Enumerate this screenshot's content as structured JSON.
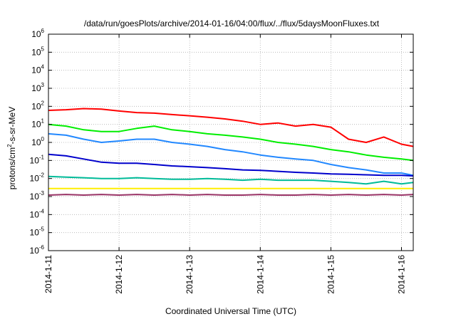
{
  "chart_data": {
    "type": "line",
    "title": "/data/run/goesPlots/archive/2014-01-16/04:00/flux/../flux/5daysMoonFluxes.txt",
    "xlabel": "Coordinated Universal Time (UTC)",
    "ylabel": "protons/cm²-s-sr-MeV",
    "ylabel_parts": {
      "pre": "protons/cm",
      "sup": "2",
      "post": "-s-sr-MeV"
    },
    "y_scale": "log",
    "ylim": [
      1e-06,
      1000000.0
    ],
    "y_ticks": [
      {
        "base": "10",
        "exp": "-6",
        "value": 1e-06
      },
      {
        "base": "10",
        "exp": "-5",
        "value": 1e-05
      },
      {
        "base": "10",
        "exp": "-4",
        "value": 0.0001
      },
      {
        "base": "10",
        "exp": "-3",
        "value": 0.001
      },
      {
        "base": "10",
        "exp": "-2",
        "value": 0.01
      },
      {
        "base": "10",
        "exp": "-1",
        "value": 0.1
      },
      {
        "base": "10",
        "exp": "0",
        "value": 1
      },
      {
        "base": "10",
        "exp": "1",
        "value": 10
      },
      {
        "base": "10",
        "exp": "2",
        "value": 100
      },
      {
        "base": "10",
        "exp": "3",
        "value": 1000
      },
      {
        "base": "10",
        "exp": "4",
        "value": 10000
      },
      {
        "base": "10",
        "exp": "5",
        "value": 100000
      },
      {
        "base": "10",
        "exp": "6",
        "value": 1000000
      }
    ],
    "x_ticks": [
      "2014-1-11",
      "2014-1-12",
      "2014-1-13",
      "2014-1-14",
      "2014-1-15",
      "2014-1-16"
    ],
    "xlim": [
      "2014-01-11T00:00",
      "2014-01-16T04:00"
    ],
    "grid": true,
    "series": [
      {
        "color": "#ff0000",
        "x": [
          "2014-01-11T00:00",
          "2014-01-11T06:00",
          "2014-01-11T12:00",
          "2014-01-11T18:00",
          "2014-01-12T00:00",
          "2014-01-12T06:00",
          "2014-01-12T12:00",
          "2014-01-12T18:00",
          "2014-01-13T00:00",
          "2014-01-13T06:00",
          "2014-01-13T12:00",
          "2014-01-13T18:00",
          "2014-01-14T00:00",
          "2014-01-14T06:00",
          "2014-01-14T12:00",
          "2014-01-14T18:00",
          "2014-01-15T00:00",
          "2014-01-15T06:00",
          "2014-01-15T12:00",
          "2014-01-15T18:00",
          "2014-01-16T00:00",
          "2014-01-16T04:00"
        ],
        "y": [
          60,
          65,
          75,
          70,
          55,
          45,
          42,
          35,
          30,
          25,
          20,
          15,
          10,
          12,
          8,
          10,
          7,
          1.5,
          1.0,
          2.0,
          0.8,
          0.6
        ]
      },
      {
        "color": "#00ee00",
        "x": [
          "2014-01-11T00:00",
          "2014-01-11T06:00",
          "2014-01-11T12:00",
          "2014-01-11T18:00",
          "2014-01-12T00:00",
          "2014-01-12T06:00",
          "2014-01-12T12:00",
          "2014-01-12T18:00",
          "2014-01-13T00:00",
          "2014-01-13T06:00",
          "2014-01-13T12:00",
          "2014-01-13T18:00",
          "2014-01-14T00:00",
          "2014-01-14T06:00",
          "2014-01-14T12:00",
          "2014-01-14T18:00",
          "2014-01-15T00:00",
          "2014-01-15T06:00",
          "2014-01-15T12:00",
          "2014-01-15T18:00",
          "2014-01-16T00:00",
          "2014-01-16T04:00"
        ],
        "y": [
          10,
          8,
          5,
          4,
          4,
          6,
          8,
          5,
          4,
          3,
          2.5,
          2,
          1.5,
          1.0,
          0.8,
          0.6,
          0.4,
          0.3,
          0.2,
          0.15,
          0.12,
          0.1
        ]
      },
      {
        "color": "#2288ff",
        "x": [
          "2014-01-11T00:00",
          "2014-01-11T06:00",
          "2014-01-11T12:00",
          "2014-01-11T18:00",
          "2014-01-12T00:00",
          "2014-01-12T06:00",
          "2014-01-12T12:00",
          "2014-01-12T18:00",
          "2014-01-13T00:00",
          "2014-01-13T06:00",
          "2014-01-13T12:00",
          "2014-01-13T18:00",
          "2014-01-14T00:00",
          "2014-01-14T06:00",
          "2014-01-14T12:00",
          "2014-01-14T18:00",
          "2014-01-15T00:00",
          "2014-01-15T06:00",
          "2014-01-15T12:00",
          "2014-01-15T18:00",
          "2014-01-16T00:00",
          "2014-01-16T04:00"
        ],
        "y": [
          3,
          2.5,
          1.5,
          1.0,
          1.2,
          1.5,
          1.5,
          1.0,
          0.8,
          0.6,
          0.4,
          0.3,
          0.2,
          0.15,
          0.12,
          0.1,
          0.06,
          0.04,
          0.03,
          0.02,
          0.02,
          0.015
        ]
      },
      {
        "color": "#0000cc",
        "x": [
          "2014-01-11T00:00",
          "2014-01-11T06:00",
          "2014-01-11T12:00",
          "2014-01-11T18:00",
          "2014-01-12T00:00",
          "2014-01-12T06:00",
          "2014-01-12T12:00",
          "2014-01-12T18:00",
          "2014-01-13T00:00",
          "2014-01-13T06:00",
          "2014-01-13T12:00",
          "2014-01-13T18:00",
          "2014-01-14T00:00",
          "2014-01-14T06:00",
          "2014-01-14T12:00",
          "2014-01-14T18:00",
          "2014-01-15T00:00",
          "2014-01-15T06:00",
          "2014-01-15T12:00",
          "2014-01-15T18:00",
          "2014-01-16T00:00",
          "2014-01-16T04:00"
        ],
        "y": [
          0.22,
          0.18,
          0.12,
          0.08,
          0.07,
          0.07,
          0.06,
          0.05,
          0.045,
          0.04,
          0.035,
          0.03,
          0.028,
          0.025,
          0.022,
          0.02,
          0.018,
          0.017,
          0.016,
          0.015,
          0.015,
          0.014
        ]
      },
      {
        "color": "#00bb99",
        "x": [
          "2014-01-11T00:00",
          "2014-01-11T06:00",
          "2014-01-11T12:00",
          "2014-01-11T18:00",
          "2014-01-12T00:00",
          "2014-01-12T06:00",
          "2014-01-12T12:00",
          "2014-01-12T18:00",
          "2014-01-13T00:00",
          "2014-01-13T06:00",
          "2014-01-13T12:00",
          "2014-01-13T18:00",
          "2014-01-14T00:00",
          "2014-01-14T06:00",
          "2014-01-14T12:00",
          "2014-01-14T18:00",
          "2014-01-15T00:00",
          "2014-01-15T06:00",
          "2014-01-15T12:00",
          "2014-01-15T18:00",
          "2014-01-16T00:00",
          "2014-01-16T04:00"
        ],
        "y": [
          0.013,
          0.012,
          0.011,
          0.01,
          0.01,
          0.011,
          0.01,
          0.009,
          0.009,
          0.01,
          0.009,
          0.008,
          0.009,
          0.008,
          0.008,
          0.008,
          0.007,
          0.006,
          0.005,
          0.007,
          0.005,
          0.006
        ]
      },
      {
        "color": "#ffee00",
        "x": [
          "2014-01-11T00:00",
          "2014-01-12T00:00",
          "2014-01-13T00:00",
          "2014-01-14T00:00",
          "2014-01-15T00:00",
          "2014-01-16T00:00",
          "2014-01-16T04:00"
        ],
        "y": [
          0.0028,
          0.0028,
          0.0028,
          0.0028,
          0.0028,
          0.0028,
          0.0028
        ]
      },
      {
        "color": "#993366",
        "x": [
          "2014-01-11T00:00",
          "2014-01-11T06:00",
          "2014-01-11T12:00",
          "2014-01-11T18:00",
          "2014-01-12T00:00",
          "2014-01-12T06:00",
          "2014-01-12T12:00",
          "2014-01-12T18:00",
          "2014-01-13T00:00",
          "2014-01-13T06:00",
          "2014-01-13T12:00",
          "2014-01-13T18:00",
          "2014-01-14T00:00",
          "2014-01-14T06:00",
          "2014-01-14T12:00",
          "2014-01-14T18:00",
          "2014-01-15T00:00",
          "2014-01-15T06:00",
          "2014-01-15T12:00",
          "2014-01-15T18:00",
          "2014-01-16T00:00",
          "2014-01-16T04:00"
        ],
        "y": [
          0.0012,
          0.0013,
          0.0012,
          0.0013,
          0.0012,
          0.0013,
          0.0012,
          0.0013,
          0.0012,
          0.0013,
          0.0012,
          0.0012,
          0.0013,
          0.0012,
          0.0012,
          0.0013,
          0.0012,
          0.0013,
          0.0012,
          0.0013,
          0.0012,
          0.0013
        ]
      }
    ]
  }
}
